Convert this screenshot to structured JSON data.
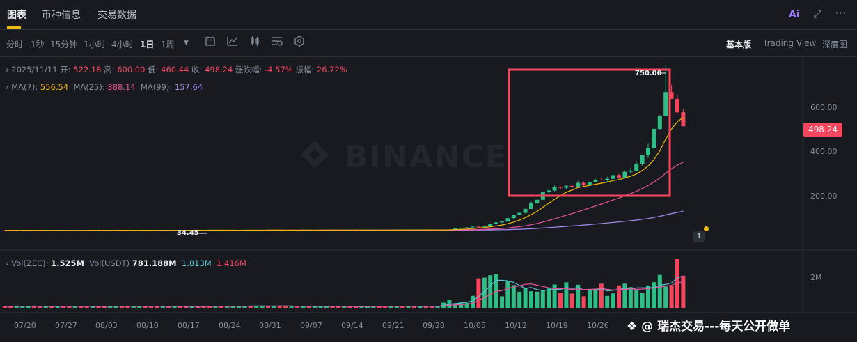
{
  "tabs": [
    "图表",
    "币种信息",
    "交易数据"
  ],
  "header_icons": {
    "ai": "Ai",
    "expand": "expand-icon",
    "more": "more-icon"
  },
  "timeframes": [
    "分时",
    "1秒",
    "15分钟",
    "1小时",
    "4小时",
    "1日",
    "1周"
  ],
  "active_timeframe": "1日",
  "views": [
    "基本版",
    "Trading View",
    "深度图"
  ],
  "active_view": "基本版",
  "ohlc": {
    "date": "2025/11/11",
    "open_label": "开:",
    "open": "522.18",
    "high_label": "高:",
    "high": "600.00",
    "low_label": "低:",
    "low": "460.44",
    "close_label": "收:",
    "close": "498.24",
    "change_label": "涨跌幅:",
    "change": "-4.57%",
    "amplitude_label": "振幅:",
    "amplitude": "26.72%"
  },
  "ma": {
    "ma7_label": "MA(7):",
    "ma7": "556.54",
    "ma25_label": "MA(25):",
    "ma25": "388.14",
    "ma99_label": "MA(99):",
    "ma99": "157.64"
  },
  "volume_info": {
    "vol_zec_label": "Vol(ZEC):",
    "vol_zec": "1.525M",
    "vol_usdt_label": "Vol(USDT)",
    "vol_usdt": "781.188M",
    "v1": "1.813M",
    "v2": "1.416M"
  },
  "price_axis": [
    "600.00",
    "400.00",
    "200.00"
  ],
  "current_price": "498.24",
  "high_marker": "750.00",
  "low_marker": "34.45",
  "volume_axis": "2M",
  "date_axis": [
    "07/20",
    "07/27",
    "08/03",
    "08/10",
    "08/17",
    "08/24",
    "08/31",
    "09/07",
    "09/14",
    "09/21",
    "09/28",
    "10/05",
    "10/12",
    "10/19",
    "10/26"
  ],
  "watermark": "BINANCE",
  "footer_watermark": "瑞杰交易---每天公开做单",
  "colors": {
    "up": "#2ebd85",
    "down": "#f6465d",
    "accent": "#f0b90b",
    "ma7": "#f0b90b",
    "ma25": "#e8559a",
    "ma99": "#a98cf0"
  }
}
